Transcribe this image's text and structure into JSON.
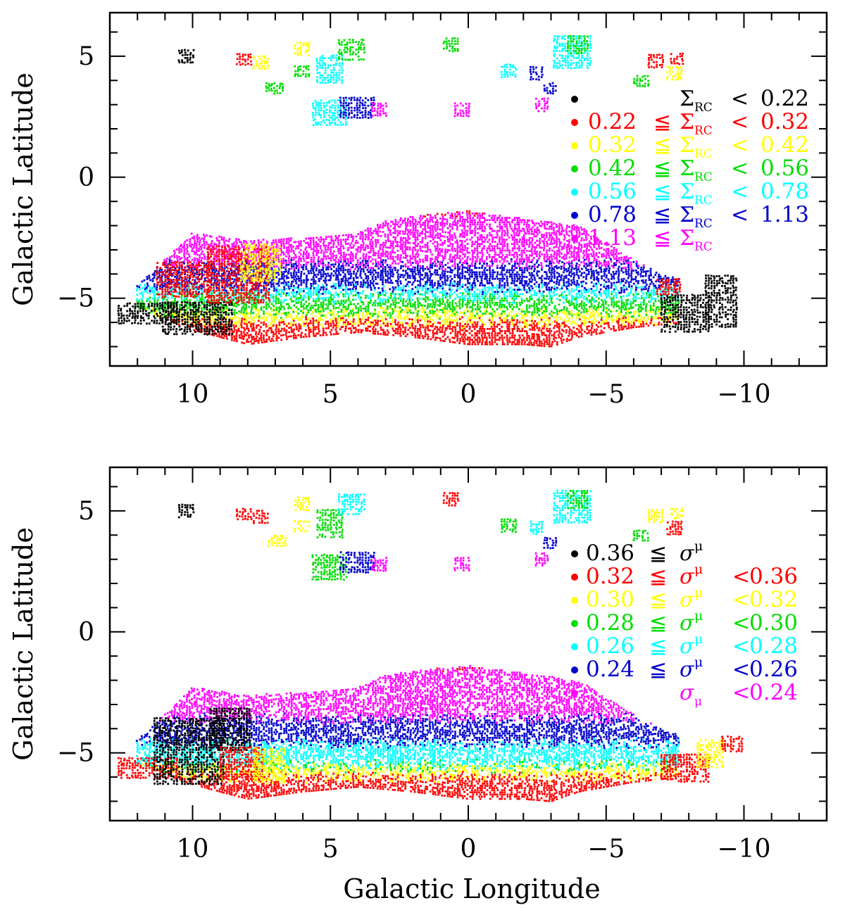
{
  "chart_data": [
    {
      "type": "scatter",
      "panel": "top",
      "xlabel": "",
      "ylabel": "Galactic Latitude",
      "xlim": [
        13,
        -13
      ],
      "ylim": [
        -7.8,
        6.8
      ],
      "xticks": [
        10,
        5,
        0,
        -5,
        -10
      ],
      "xtick_labels": [
        "10",
        "5",
        "0",
        "−5",
        "−10"
      ],
      "yticks": [
        5,
        0,
        -5
      ],
      "ytick_labels": [
        "5",
        "0",
        "−5"
      ],
      "legend_position": "right",
      "legend": [
        {
          "low": "",
          "low_op": "",
          "sym": "Σ",
          "sub": "RC",
          "sup": "",
          "high_op": "<",
          "high": "0.22",
          "color": "#000000"
        },
        {
          "low": "0.22",
          "low_op": "≦",
          "sym": "Σ",
          "sub": "RC",
          "sup": "",
          "high_op": "<",
          "high": "0.32",
          "color": "#ff0000"
        },
        {
          "low": "0.32",
          "low_op": "≦",
          "sym": "Σ",
          "sub": "RC",
          "sup": "",
          "high_op": "<",
          "high": "0.42",
          "color": "#ffff00"
        },
        {
          "low": "0.42",
          "low_op": "≦",
          "sym": "Σ",
          "sub": "RC",
          "sup": "",
          "high_op": "<",
          "high": "0.56",
          "color": "#00dd00"
        },
        {
          "low": "0.56",
          "low_op": "≦",
          "sym": "Σ",
          "sub": "RC",
          "sup": "",
          "high_op": "<",
          "high": "0.78",
          "color": "#00ffff"
        },
        {
          "low": "0.78",
          "low_op": "≦",
          "sym": "Σ",
          "sub": "RC",
          "sup": "",
          "high_op": "<",
          "high": "1.13",
          "color": "#0000cc"
        },
        {
          "low": "1.13",
          "low_op": "≦",
          "sym": "Σ",
          "sub": "RC",
          "sup": "",
          "high_op": "",
          "high": "",
          "color": "#ff00ff"
        }
      ],
      "bulge_bands": [
        {
          "b_min": -7.0,
          "b_max": -5.4,
          "color": "#ff0000"
        },
        {
          "b_min": -6.0,
          "b_max": -5.2,
          "color": "#ffff00"
        },
        {
          "b_min": -5.6,
          "b_max": -4.7,
          "color": "#00dd00"
        },
        {
          "b_min": -5.0,
          "b_max": -4.2,
          "color": "#00ffff"
        },
        {
          "b_min": -4.6,
          "b_max": -3.3,
          "color": "#0000cc"
        },
        {
          "b_min": -3.6,
          "b_max": -1.4,
          "color": "#ff00ff"
        }
      ],
      "fields": [
        {
          "l": 10.2,
          "b": 5.0,
          "w": 0.6,
          "h": 0.55,
          "color": "#000000"
        },
        {
          "l": 8.1,
          "b": 4.9,
          "w": 0.6,
          "h": 0.5,
          "color": "#ff0000"
        },
        {
          "l": 7.5,
          "b": 4.75,
          "w": 0.6,
          "h": 0.55,
          "color": "#ffff00"
        },
        {
          "l": 7.0,
          "b": 3.7,
          "w": 0.7,
          "h": 0.5,
          "color": "#00dd00"
        },
        {
          "l": 6.0,
          "b": 5.3,
          "w": 0.6,
          "h": 0.55,
          "color": "#ffff00"
        },
        {
          "l": 6.0,
          "b": 4.4,
          "w": 0.6,
          "h": 0.5,
          "color": "#00dd00"
        },
        {
          "l": 5.0,
          "b": 4.5,
          "w": 1.0,
          "h": 1.2,
          "color": "#00ffff"
        },
        {
          "l": 4.2,
          "b": 5.3,
          "w": 1.0,
          "h": 0.9,
          "color": "#00dd00"
        },
        {
          "l": 5.0,
          "b": 2.7,
          "w": 1.3,
          "h": 1.1,
          "color": "#00ffff"
        },
        {
          "l": 4.0,
          "b": 2.9,
          "w": 1.3,
          "h": 0.9,
          "color": "#0000cc"
        },
        {
          "l": 3.2,
          "b": 2.8,
          "w": 0.6,
          "h": 0.55,
          "color": "#ff00ff"
        },
        {
          "l": 0.6,
          "b": 5.5,
          "w": 0.6,
          "h": 0.6,
          "color": "#00dd00"
        },
        {
          "l": 0.2,
          "b": 2.8,
          "w": 0.6,
          "h": 0.55,
          "color": "#ff00ff"
        },
        {
          "l": -1.5,
          "b": 4.4,
          "w": 0.6,
          "h": 0.55,
          "color": "#00ffff"
        },
        {
          "l": -2.5,
          "b": 4.3,
          "w": 0.5,
          "h": 0.55,
          "color": "#0000cc"
        },
        {
          "l": -3.0,
          "b": 3.7,
          "w": 0.5,
          "h": 0.5,
          "color": "#0000cc"
        },
        {
          "l": -2.7,
          "b": 3.0,
          "w": 0.5,
          "h": 0.55,
          "color": "#ff00ff"
        },
        {
          "l": -3.8,
          "b": 5.2,
          "w": 1.4,
          "h": 1.4,
          "color": "#00ffff"
        },
        {
          "l": -4.0,
          "b": 5.5,
          "w": 0.8,
          "h": 0.8,
          "color": "#00dd00"
        },
        {
          "l": -6.3,
          "b": 4.0,
          "w": 0.6,
          "h": 0.5,
          "color": "#00dd00"
        },
        {
          "l": -6.8,
          "b": 4.8,
          "w": 0.55,
          "h": 0.55,
          "color": "#ff0000"
        },
        {
          "l": -7.5,
          "b": 4.3,
          "w": 0.6,
          "h": 0.55,
          "color": "#ffff00"
        },
        {
          "l": -7.6,
          "b": 4.9,
          "w": 0.5,
          "h": 0.45,
          "color": "#ff0000"
        },
        {
          "l": 11.6,
          "b": -5.6,
          "w": 2.2,
          "h": 0.9,
          "color": "#000000"
        },
        {
          "l": 9.8,
          "b": -5.8,
          "w": 2.6,
          "h": 1.4,
          "color": "#000000"
        },
        {
          "l": 10.3,
          "b": -4.2,
          "w": 2.0,
          "h": 1.5,
          "color": "#ff0000"
        },
        {
          "l": 8.3,
          "b": -4.0,
          "w": 2.3,
          "h": 2.4,
          "color": "#ff0000"
        },
        {
          "l": 7.5,
          "b": -3.5,
          "w": 1.5,
          "h": 1.6,
          "color": "#ffff00"
        },
        {
          "l": -7.9,
          "b": -5.6,
          "w": 1.8,
          "h": 1.6,
          "color": "#000000"
        },
        {
          "l": -9.2,
          "b": -5.1,
          "w": 1.2,
          "h": 2.2,
          "color": "#000000"
        },
        {
          "l": -7.3,
          "b": -4.5,
          "w": 0.9,
          "h": 0.7,
          "color": "#ff0000"
        }
      ]
    },
    {
      "type": "scatter",
      "panel": "bottom",
      "xlabel": "Galactic Longitude",
      "ylabel": "Galactic Latitude",
      "xlim": [
        13,
        -13
      ],
      "ylim": [
        -7.8,
        6.8
      ],
      "xticks": [
        10,
        5,
        0,
        -5,
        -10
      ],
      "xtick_labels": [
        "10",
        "5",
        "0",
        "−5",
        "−10"
      ],
      "yticks": [
        5,
        0,
        -5
      ],
      "ytick_labels": [
        "5",
        "0",
        "−5"
      ],
      "legend_position": "right",
      "legend": [
        {
          "low": "0.36",
          "low_op": "≦",
          "sym": "σ",
          "sub": "",
          "sup": "μ",
          "high_op": "",
          "high": "",
          "color": "#000000"
        },
        {
          "low": "0.32",
          "low_op": "≦",
          "sym": "σ",
          "sub": "",
          "sup": "μ",
          "high_op": "<",
          "high": "0.36",
          "color": "#ff0000"
        },
        {
          "low": "0.30",
          "low_op": "≦",
          "sym": "σ",
          "sub": "",
          "sup": "μ",
          "high_op": "<",
          "high": "0.32",
          "color": "#ffff00"
        },
        {
          "low": "0.28",
          "low_op": "≦",
          "sym": "σ",
          "sub": "",
          "sup": "μ",
          "high_op": "<",
          "high": "0.30",
          "color": "#00dd00"
        },
        {
          "low": "0.26",
          "low_op": "≦",
          "sym": "σ",
          "sub": "",
          "sup": "μ",
          "high_op": "<",
          "high": "0.28",
          "color": "#00ffff"
        },
        {
          "low": "0.24",
          "low_op": "≦",
          "sym": "σ",
          "sub": "",
          "sup": "μ",
          "high_op": "<",
          "high": "0.26",
          "color": "#0000cc"
        },
        {
          "low": "",
          "low_op": "",
          "sym": "σ",
          "sub": "μ",
          "sup": "",
          "high_op": "<",
          "high": "0.24",
          "color": "#ff00ff"
        }
      ],
      "bulge_bands": [
        {
          "b_min": -7.0,
          "b_max": -5.4,
          "color": "#ff0000"
        },
        {
          "b_min": -6.0,
          "b_max": -5.0,
          "color": "#ffff00"
        },
        {
          "b_min": -5.6,
          "b_max": -4.5,
          "color": "#00dd00"
        },
        {
          "b_min": -5.5,
          "b_max": -4.0,
          "color": "#00ffff"
        },
        {
          "b_min": -4.6,
          "b_max": -3.2,
          "color": "#0000cc"
        },
        {
          "b_min": -3.6,
          "b_max": -1.4,
          "color": "#ff00ff"
        }
      ],
      "fields": [
        {
          "l": 10.2,
          "b": 5.0,
          "w": 0.6,
          "h": 0.55,
          "color": "#000000"
        },
        {
          "l": 8.1,
          "b": 4.9,
          "w": 0.6,
          "h": 0.5,
          "color": "#ff0000"
        },
        {
          "l": 7.5,
          "b": 4.75,
          "w": 0.6,
          "h": 0.55,
          "color": "#ff0000"
        },
        {
          "l": 6.9,
          "b": 3.8,
          "w": 0.7,
          "h": 0.5,
          "color": "#ffff00"
        },
        {
          "l": 6.0,
          "b": 5.3,
          "w": 0.6,
          "h": 0.55,
          "color": "#ffff00"
        },
        {
          "l": 6.0,
          "b": 4.4,
          "w": 0.6,
          "h": 0.5,
          "color": "#ffff00"
        },
        {
          "l": 5.0,
          "b": 4.5,
          "w": 1.0,
          "h": 1.2,
          "color": "#00dd00"
        },
        {
          "l": 4.2,
          "b": 5.3,
          "w": 1.0,
          "h": 0.9,
          "color": "#00ffff"
        },
        {
          "l": 5.0,
          "b": 2.7,
          "w": 1.3,
          "h": 1.1,
          "color": "#00dd00"
        },
        {
          "l": 4.0,
          "b": 2.9,
          "w": 1.3,
          "h": 0.9,
          "color": "#0000cc"
        },
        {
          "l": 3.2,
          "b": 2.8,
          "w": 0.6,
          "h": 0.55,
          "color": "#ff00ff"
        },
        {
          "l": 0.6,
          "b": 5.5,
          "w": 0.6,
          "h": 0.6,
          "color": "#ff0000"
        },
        {
          "l": 0.2,
          "b": 2.8,
          "w": 0.6,
          "h": 0.55,
          "color": "#ff00ff"
        },
        {
          "l": -1.5,
          "b": 4.4,
          "w": 0.6,
          "h": 0.55,
          "color": "#00dd00"
        },
        {
          "l": -2.5,
          "b": 4.3,
          "w": 0.5,
          "h": 0.55,
          "color": "#00ffff"
        },
        {
          "l": -3.0,
          "b": 3.7,
          "w": 0.5,
          "h": 0.5,
          "color": "#0000cc"
        },
        {
          "l": -2.7,
          "b": 3.0,
          "w": 0.5,
          "h": 0.55,
          "color": "#ff00ff"
        },
        {
          "l": -3.8,
          "b": 5.2,
          "w": 1.4,
          "h": 1.4,
          "color": "#00ffff"
        },
        {
          "l": -4.0,
          "b": 5.5,
          "w": 0.8,
          "h": 0.8,
          "color": "#00dd00"
        },
        {
          "l": -6.3,
          "b": 4.0,
          "w": 0.6,
          "h": 0.5,
          "color": "#00dd00"
        },
        {
          "l": -6.8,
          "b": 4.8,
          "w": 0.55,
          "h": 0.55,
          "color": "#ffff00"
        },
        {
          "l": -7.5,
          "b": 4.3,
          "w": 0.6,
          "h": 0.55,
          "color": "#ff0000"
        },
        {
          "l": -7.6,
          "b": 4.9,
          "w": 0.5,
          "h": 0.45,
          "color": "#ffff00"
        },
        {
          "l": 11.6,
          "b": -5.6,
          "w": 2.2,
          "h": 0.9,
          "color": "#ff0000"
        },
        {
          "l": 10.1,
          "b": -4.9,
          "w": 2.6,
          "h": 2.8,
          "color": "#000000"
        },
        {
          "l": 8.6,
          "b": -4.0,
          "w": 1.5,
          "h": 1.8,
          "color": "#000000"
        },
        {
          "l": 8.2,
          "b": -5.4,
          "w": 1.6,
          "h": 1.4,
          "color": "#ff0000"
        },
        {
          "l": 7.2,
          "b": -5.5,
          "w": 1.2,
          "h": 1.5,
          "color": "#ffff00"
        },
        {
          "l": -7.9,
          "b": -5.6,
          "w": 1.8,
          "h": 1.2,
          "color": "#ff0000"
        },
        {
          "l": -8.8,
          "b": -5.0,
          "w": 1.0,
          "h": 1.2,
          "color": "#ffff00"
        },
        {
          "l": -9.6,
          "b": -4.6,
          "w": 0.8,
          "h": 0.7,
          "color": "#ff0000"
        }
      ]
    }
  ]
}
